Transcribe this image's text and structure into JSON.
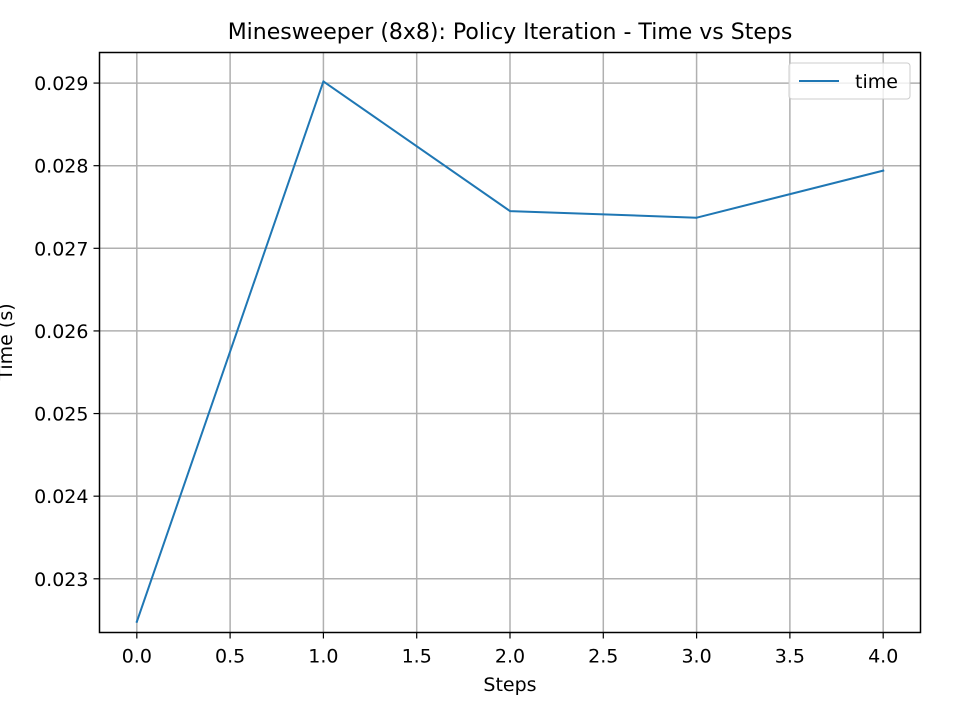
{
  "chart_data": {
    "type": "line",
    "title": "Minesweeper (8x8): Policy Iteration - Time vs Steps",
    "xlabel": "Steps",
    "ylabel": "Time (s)",
    "xlim": [
      -0.2,
      4.2
    ],
    "ylim": [
      0.02235,
      0.02937
    ],
    "x_ticks": [
      0.0,
      0.5,
      1.0,
      1.5,
      2.0,
      2.5,
      3.0,
      3.5,
      4.0
    ],
    "x_tick_labels": [
      "0.0",
      "0.5",
      "1.0",
      "1.5",
      "2.0",
      "2.5",
      "3.0",
      "3.5",
      "4.0"
    ],
    "y_ticks": [
      0.023,
      0.024,
      0.025,
      0.026,
      0.027,
      0.028,
      0.029
    ],
    "y_tick_labels": [
      "0.023",
      "0.024",
      "0.025",
      "0.026",
      "0.027",
      "0.028",
      "0.029"
    ],
    "grid": true,
    "legend_position": "top-right",
    "series": [
      {
        "name": "time",
        "color": "#1f77b4",
        "x": [
          0,
          1,
          2,
          3,
          4
        ],
        "y": [
          0.02248,
          0.02902,
          0.02745,
          0.02737,
          0.02794
        ]
      }
    ]
  }
}
